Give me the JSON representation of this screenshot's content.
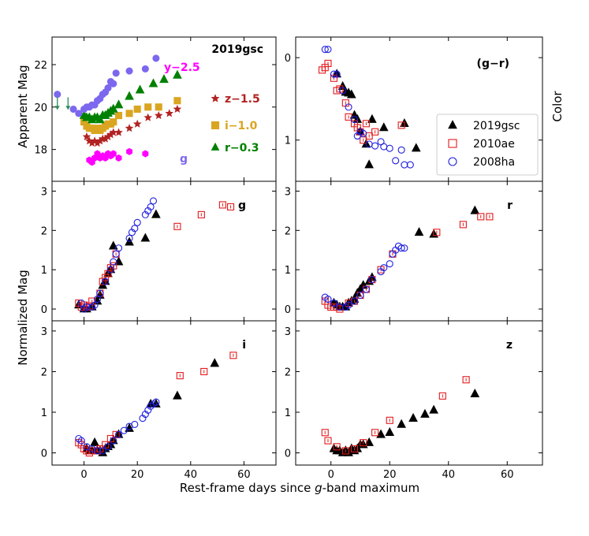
{
  "figure": {
    "xlabel_prefix": "Rest-frame days since ",
    "xlabel_italic": "g",
    "xlabel_suffix": "-band maximum",
    "ylabel_top": "Apparent Mag",
    "ylabel_norm": "Normalized Mag",
    "ylabel_color": "Color"
  },
  "chart_data": [
    {
      "id": "apparent",
      "type": "scatter",
      "title": "2019gsc",
      "xlim": [
        -12,
        72
      ],
      "ylim": [
        23.3,
        16.5
      ],
      "xticks": [],
      "yticks": [
        18,
        20,
        22
      ],
      "series": [
        {
          "name": "y-2.5",
          "label": "y−2.5",
          "color": "#ff00ff",
          "marker": "hex",
          "x": [
            2,
            3,
            4,
            5,
            6,
            7,
            8,
            9,
            10,
            11,
            13,
            17,
            23
          ],
          "y": [
            17.5,
            17.4,
            17.6,
            17.8,
            17.6,
            17.7,
            17.6,
            17.8,
            17.7,
            17.8,
            17.6,
            17.9,
            17.8
          ]
        },
        {
          "name": "z-1.5",
          "label": "z−1.5",
          "color": "#b22222",
          "marker": "star",
          "x": [
            1,
            2,
            3,
            4,
            5,
            6,
            7,
            8,
            9,
            10,
            11,
            13,
            17,
            20,
            24,
            28,
            32,
            35
          ],
          "y": [
            18.6,
            18.4,
            18.3,
            18.4,
            18.3,
            18.4,
            18.5,
            18.5,
            18.6,
            18.7,
            18.8,
            18.8,
            19.0,
            19.2,
            19.5,
            19.6,
            19.7,
            19.9
          ]
        },
        {
          "name": "i-1.0",
          "label": "i−1.0",
          "color": "#daa520",
          "marker": "square",
          "x": [
            0,
            1,
            2,
            3,
            4,
            5,
            6,
            7,
            8,
            9,
            10,
            11,
            13,
            17,
            20,
            24,
            28,
            35
          ],
          "y": [
            19.3,
            19.1,
            19.0,
            19.0,
            18.9,
            19.0,
            18.9,
            19.0,
            19.1,
            19.2,
            19.2,
            19.3,
            19.6,
            19.7,
            19.9,
            20.0,
            20.0,
            20.3
          ]
        },
        {
          "name": "r-0.3",
          "label": "r−0.3",
          "color": "#008000",
          "marker": "triangle",
          "x": [
            0,
            1,
            2,
            3,
            4,
            5,
            6,
            7,
            8,
            9,
            10,
            11,
            13,
            17,
            21,
            26,
            30,
            35
          ],
          "y": [
            19.6,
            19.5,
            19.5,
            19.4,
            19.5,
            19.5,
            19.4,
            19.6,
            19.6,
            19.7,
            19.8,
            19.9,
            20.1,
            20.5,
            20.8,
            21.1,
            21.3,
            21.5
          ]
        },
        {
          "name": "g",
          "label": "g",
          "color": "#7b68ee",
          "marker": "circle",
          "x": [
            -10,
            -4,
            -2,
            0,
            1,
            2,
            3,
            4,
            5,
            6,
            7,
            8,
            9,
            10,
            11,
            12,
            17,
            23,
            27
          ],
          "y": [
            20.6,
            19.9,
            19.7,
            19.9,
            20.0,
            20.0,
            20.1,
            20.1,
            20.3,
            20.4,
            20.6,
            20.7,
            20.9,
            21.2,
            21.1,
            21.6,
            21.7,
            21.8,
            22.3
          ]
        }
      ],
      "upper_limits": [
        {
          "x": -10,
          "y": 20.2
        },
        {
          "x": -6,
          "y": 20.2
        }
      ]
    },
    {
      "id": "color",
      "type": "scatter",
      "title": "(g−r)",
      "xlim": [
        -12,
        72
      ],
      "ylim": [
        -0.25,
        1.5
      ],
      "xticks": [],
      "yticks": [
        0,
        1
      ],
      "legend": {
        "position": "right",
        "entries": [
          "2019gsc",
          "2010ae",
          "2008ha"
        ]
      },
      "series": [
        {
          "name": "2019gsc",
          "x": [
            2,
            4,
            5,
            6,
            7,
            8,
            9,
            10,
            12,
            13,
            14,
            18,
            25,
            29
          ],
          "y": [
            0.2,
            0.35,
            0.42,
            0.43,
            0.45,
            0.7,
            0.75,
            0.9,
            1.05,
            1.3,
            0.75,
            0.85,
            0.8,
            1.1
          ]
        },
        {
          "name": "2010ae",
          "x": [
            -3,
            -2,
            -1,
            1,
            2,
            3,
            5,
            6,
            8,
            9,
            10,
            11,
            12,
            13,
            15,
            24
          ],
          "y": [
            0.15,
            0.12,
            0.07,
            0.25,
            0.4,
            0.38,
            0.55,
            0.72,
            0.8,
            0.85,
            0.9,
            1.0,
            0.8,
            0.95,
            0.9,
            0.82
          ]
        },
        {
          "name": "2008ha",
          "x": [
            -2,
            -1,
            1,
            2,
            4,
            6,
            8,
            9,
            10,
            11,
            13,
            15,
            17,
            18,
            20,
            22,
            24,
            25,
            27
          ],
          "y": [
            -0.1,
            -0.1,
            0.2,
            0.2,
            0.4,
            0.6,
            0.75,
            0.95,
            0.9,
            0.92,
            1.05,
            1.07,
            1.02,
            1.08,
            1.1,
            1.25,
            1.12,
            1.3,
            1.3
          ]
        }
      ]
    },
    {
      "id": "g-norm",
      "type": "scatter",
      "title": "g",
      "xlim": [
        -12,
        72
      ],
      "ylim": [
        3.25,
        -0.3
      ],
      "xticks": [],
      "yticks": [
        0,
        1,
        2,
        3
      ],
      "series": [
        {
          "name": "2019gsc",
          "x": [
            -2,
            0,
            1,
            3,
            5,
            6,
            7,
            8,
            9,
            10,
            11,
            13,
            17,
            23,
            27
          ],
          "y": [
            0.1,
            0.0,
            0.0,
            0.05,
            0.2,
            0.35,
            0.6,
            0.7,
            0.9,
            1.0,
            1.6,
            1.2,
            1.7,
            1.8,
            2.4
          ]
        },
        {
          "name": "2010ae",
          "x": [
            -2,
            -1,
            0,
            1,
            2,
            3,
            6,
            7,
            8,
            9,
            10,
            11,
            12,
            35,
            44,
            52,
            55
          ],
          "y": [
            0.15,
            0.05,
            0.1,
            0.05,
            0.08,
            0.2,
            0.4,
            0.7,
            0.8,
            0.9,
            1.05,
            1.1,
            1.4,
            2.1,
            2.4,
            2.65,
            2.6
          ]
        },
        {
          "name": "2008ha",
          "x": [
            -1,
            0,
            1,
            3,
            4,
            5,
            6,
            8,
            10,
            11,
            12,
            13,
            17,
            18,
            19,
            20,
            23,
            24,
            25,
            26
          ],
          "y": [
            0.15,
            0.0,
            0.05,
            0.05,
            0.1,
            0.25,
            0.4,
            0.7,
            1.0,
            1.2,
            1.4,
            1.55,
            1.8,
            1.95,
            2.05,
            2.2,
            2.4,
            2.5,
            2.6,
            2.75
          ]
        }
      ]
    },
    {
      "id": "r-norm",
      "type": "scatter",
      "title": "r",
      "xlim": [
        -12,
        72
      ],
      "ylim": [
        3.25,
        -0.3
      ],
      "xticks": [],
      "yticks": [
        0,
        1,
        2,
        3
      ],
      "series": [
        {
          "name": "2019gsc",
          "x": [
            1,
            2,
            3,
            4,
            5,
            6,
            7,
            8,
            9,
            10,
            11,
            13,
            14,
            30,
            35,
            49
          ],
          "y": [
            0.15,
            0.1,
            0.05,
            0.05,
            0.05,
            0.15,
            0.2,
            0.25,
            0.4,
            0.5,
            0.6,
            0.7,
            0.8,
            1.95,
            1.9,
            2.5
          ]
        },
        {
          "name": "2010ae",
          "x": [
            -2,
            -1,
            0,
            1,
            2,
            3,
            6,
            8,
            10,
            12,
            14,
            17,
            21,
            36,
            45,
            51,
            54
          ],
          "y": [
            0.2,
            0.1,
            0.05,
            0.05,
            0.05,
            0.0,
            0.15,
            0.2,
            0.35,
            0.5,
            0.75,
            1.0,
            1.4,
            1.95,
            2.15,
            2.35,
            2.35
          ]
        },
        {
          "name": "2008ha",
          "x": [
            -2,
            -1,
            1,
            3,
            5,
            6,
            8,
            10,
            12,
            14,
            17,
            18,
            20,
            21,
            22,
            23,
            24,
            25
          ],
          "y": [
            0.3,
            0.25,
            0.15,
            0.05,
            0.05,
            0.1,
            0.2,
            0.35,
            0.5,
            0.75,
            0.95,
            1.05,
            1.15,
            1.4,
            1.5,
            1.6,
            1.55,
            1.55
          ]
        }
      ]
    },
    {
      "id": "i-norm",
      "type": "scatter",
      "title": "i",
      "xlim": [
        -12,
        72
      ],
      "ylim": [
        3.25,
        -0.3
      ],
      "xticks": [],
      "yticks": [
        0,
        1,
        2,
        3
      ],
      "series": [
        {
          "name": "2019gsc",
          "x": [
            1,
            2,
            3,
            4,
            5,
            6,
            7,
            8,
            9,
            10,
            11,
            13,
            17,
            25,
            27,
            35,
            49
          ],
          "y": [
            0.1,
            0.05,
            0.05,
            0.25,
            0.05,
            0.05,
            0.0,
            0.1,
            0.15,
            0.2,
            0.3,
            0.45,
            0.6,
            1.2,
            1.2,
            1.4,
            2.2
          ]
        },
        {
          "name": "2010ae",
          "x": [
            -2,
            -1,
            0,
            1,
            2,
            3,
            5,
            6,
            8,
            10,
            12,
            36,
            45,
            56
          ],
          "y": [
            0.25,
            0.2,
            0.1,
            0.05,
            0.0,
            0.05,
            0.05,
            0.1,
            0.2,
            0.35,
            0.45,
            1.9,
            2.0,
            2.4
          ]
        },
        {
          "name": "2008ha",
          "x": [
            -2,
            -1,
            1,
            3,
            5,
            7,
            9,
            11,
            13,
            15,
            17,
            19,
            22,
            23,
            24,
            25,
            26,
            27
          ],
          "y": [
            0.35,
            0.3,
            0.15,
            0.1,
            0.05,
            0.05,
            0.15,
            0.3,
            0.45,
            0.55,
            0.65,
            0.7,
            0.85,
            0.95,
            1.05,
            1.15,
            1.2,
            1.25
          ]
        }
      ]
    },
    {
      "id": "z-norm",
      "type": "scatter",
      "title": "z",
      "xlim": [
        -12,
        72
      ],
      "ylim": [
        3.25,
        -0.3
      ],
      "xticks": [],
      "yticks": [
        0,
        1,
        2,
        3
      ],
      "series": [
        {
          "name": "2019gsc",
          "x": [
            1,
            2,
            3,
            4,
            5,
            6,
            7,
            8,
            9,
            10,
            11,
            13,
            17,
            20,
            24,
            28,
            32,
            35,
            49
          ],
          "y": [
            0.1,
            0.05,
            0.05,
            0.0,
            0.05,
            0.0,
            0.1,
            0.05,
            0.1,
            0.2,
            0.2,
            0.25,
            0.45,
            0.5,
            0.7,
            0.85,
            0.95,
            1.05,
            1.45
          ]
        },
        {
          "name": "2010ae",
          "x": [
            -2,
            -1,
            2,
            5,
            8,
            11,
            15,
            20,
            38,
            46
          ],
          "y": [
            0.5,
            0.3,
            0.15,
            0.05,
            0.1,
            0.25,
            0.5,
            0.8,
            1.4,
            1.8
          ]
        }
      ]
    },
    {
      "id": "x-axis",
      "type": "axis",
      "xticks": [
        0,
        20,
        40,
        60
      ]
    }
  ]
}
